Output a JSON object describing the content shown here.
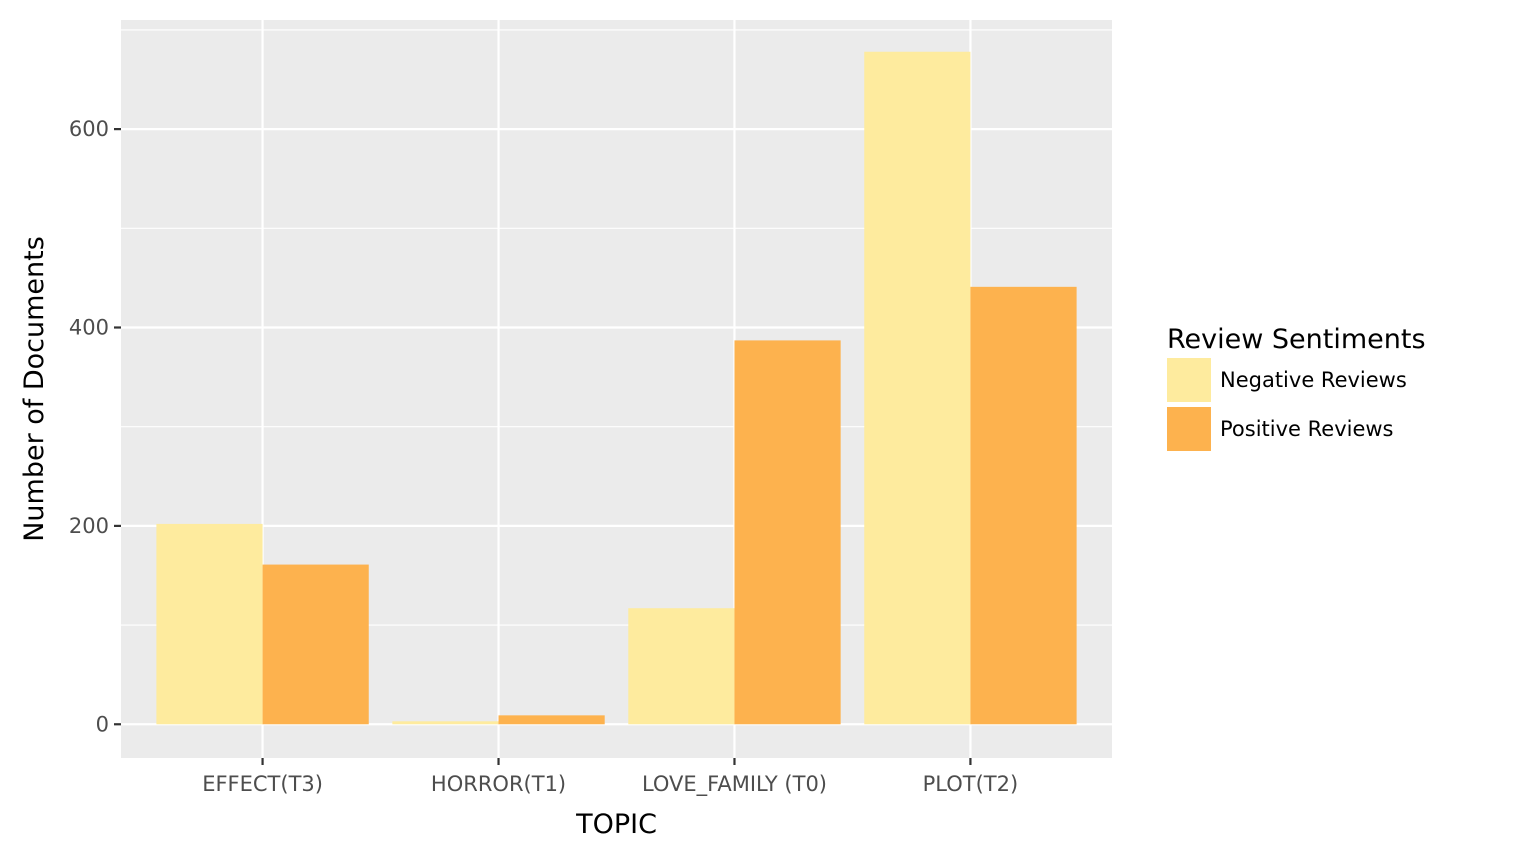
{
  "chart_data": {
    "type": "bar",
    "title": "",
    "xlabel": "TOPIC",
    "ylabel": "Number of Documents",
    "categories": [
      "EFFECT(T3)",
      "HORROR(T1)",
      "LOVE_FAMILY (T0)",
      "PLOT(T2)"
    ],
    "series": [
      {
        "name": "Negative Reviews",
        "color": "#FEEB9E",
        "values": [
          202,
          3,
          117,
          678
        ]
      },
      {
        "name": "Positive Reviews",
        "color": "#FDB24E",
        "values": [
          161,
          9,
          387,
          441
        ]
      }
    ],
    "ylim": [
      -34,
      710
    ],
    "yticks": [
      0,
      200,
      400,
      600
    ],
    "ytick_labels": [
      "0",
      "200",
      "400",
      "600"
    ],
    "grid": true,
    "legend": {
      "title": "Review Sentiments",
      "placement": "right"
    },
    "colors": {
      "panel_background": "#EBEBEB",
      "grid": "#FFFFFF"
    }
  }
}
